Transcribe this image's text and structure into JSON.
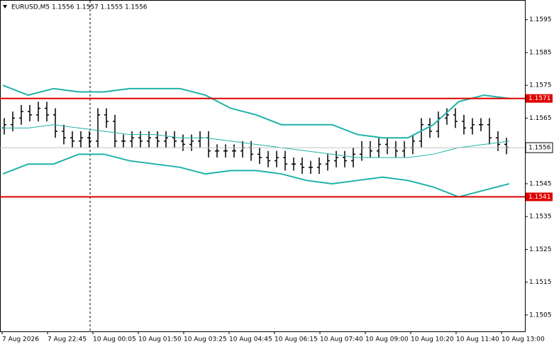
{
  "chart_data": {
    "type": "ohlc",
    "title": "EURUSD,M5  1.1556 1.1557 1.1555 1.1556",
    "color": "#000000",
    "open": [
      1.1562,
      1.1563,
      1.1565,
      1.1567,
      1.1566,
      1.1568,
      1.1566,
      1.1561,
      1.1559,
      1.1558,
      1.1559,
      1.1558,
      1.1566,
      1.1564,
      1.1558,
      1.1558,
      1.1559,
      1.1558,
      1.1559,
      1.1558,
      1.1559,
      1.1558,
      1.1557,
      1.1558,
      1.1559,
      1.1555,
      1.1555,
      1.1555,
      1.1555,
      1.1556,
      1.1554,
      1.1553,
      1.1552,
      1.1553,
      1.1551,
      1.1551,
      1.155,
      1.155,
      1.1551,
      1.1552,
      1.1553,
      1.1552,
      1.1554,
      1.1556,
      1.1555,
      1.1557,
      1.1556,
      1.1555,
      1.1556,
      1.1558,
      1.1563,
      1.1561,
      1.1565,
      1.1566,
      1.1564,
      1.1562,
      1.1563,
      1.1563,
      1.1559,
      1.1557
    ],
    "high": [
      1.1565,
      1.1567,
      1.1569,
      1.1569,
      1.157,
      1.157,
      1.1568,
      1.1563,
      1.1561,
      1.1561,
      1.1561,
      1.1568,
      1.1568,
      1.1566,
      1.156,
      1.1561,
      1.1561,
      1.1561,
      1.1561,
      1.1561,
      1.1561,
      1.156,
      1.156,
      1.1561,
      1.1561,
      1.1557,
      1.1557,
      1.1557,
      1.1558,
      1.1558,
      1.1556,
      1.1555,
      1.1555,
      1.1555,
      1.1553,
      1.1553,
      1.1552,
      1.1553,
      1.1554,
      1.1555,
      1.1555,
      1.1556,
      1.1558,
      1.1558,
      1.1559,
      1.1559,
      1.1558,
      1.1558,
      1.156,
      1.1565,
      1.1565,
      1.1567,
      1.1568,
      1.1568,
      1.1566,
      1.1565,
      1.1565,
      1.1565,
      1.1561,
      1.1559
    ],
    "low": [
      1.156,
      1.1561,
      1.1563,
      1.1564,
      1.1564,
      1.1564,
      1.1559,
      1.1557,
      1.1556,
      1.1556,
      1.1556,
      1.1556,
      1.1562,
      1.1556,
      1.1556,
      1.1556,
      1.1556,
      1.1556,
      1.1556,
      1.1556,
      1.1556,
      1.1555,
      1.1555,
      1.1556,
      1.1553,
      1.1553,
      1.1553,
      1.1553,
      1.1553,
      1.1552,
      1.1551,
      1.155,
      1.155,
      1.1549,
      1.1549,
      1.1548,
      1.1548,
      1.1548,
      1.1549,
      1.155,
      1.155,
      1.155,
      1.1552,
      1.1553,
      1.1553,
      1.1554,
      1.1553,
      1.1553,
      1.1554,
      1.1556,
      1.1559,
      1.1559,
      1.1563,
      1.1562,
      1.156,
      1.156,
      1.1561,
      1.1557,
      1.1555,
      1.1554
    ],
    "close": [
      1.1563,
      1.1565,
      1.1567,
      1.1566,
      1.1568,
      1.1566,
      1.1561,
      1.1559,
      1.1558,
      1.1559,
      1.1558,
      1.1566,
      1.1564,
      1.1558,
      1.1558,
      1.1559,
      1.1558,
      1.1559,
      1.1558,
      1.1559,
      1.1558,
      1.1557,
      1.1558,
      1.1559,
      1.1555,
      1.1555,
      1.1555,
      1.1555,
      1.1556,
      1.1554,
      1.1553,
      1.1552,
      1.1553,
      1.1551,
      1.1551,
      1.155,
      1.155,
      1.1551,
      1.1552,
      1.1553,
      1.1552,
      1.1554,
      1.1556,
      1.1555,
      1.1557,
      1.1556,
      1.1555,
      1.1556,
      1.1558,
      1.1563,
      1.1561,
      1.1565,
      1.1566,
      1.1564,
      1.1562,
      1.1563,
      1.1563,
      1.1559,
      1.1557,
      1.1556
    ],
    "series": [
      {
        "color": "#20b2aa",
        "values": [
          1.1575,
          1.1572,
          1.1574,
          1.1573,
          1.1573,
          1.1574,
          1.1574,
          1.1574,
          1.1572,
          1.1568,
          1.1566,
          1.1563,
          1.1563,
          1.1563,
          1.156,
          1.1559,
          1.1559,
          1.1563,
          1.157,
          1.1572,
          1.1571
        ]
      },
      {
        "color": "#20b2aa",
        "values": [
          1.1562,
          1.1562,
          1.1563,
          1.1562,
          1.1561,
          1.156,
          1.156,
          1.1559,
          1.1559,
          1.1558,
          1.1557,
          1.1556,
          1.1555,
          1.1554,
          1.1553,
          1.1553,
          1.1553,
          1.1554,
          1.1556,
          1.1557,
          1.1558
        ]
      },
      {
        "color": "#20b2aa",
        "values": [
          1.1548,
          1.1551,
          1.1551,
          1.1554,
          1.1554,
          1.1552,
          1.1551,
          1.155,
          1.1548,
          1.1549,
          1.1549,
          1.1548,
          1.1546,
          1.1545,
          1.1546,
          1.1547,
          1.1546,
          1.1544,
          1.1541,
          1.1543,
          1.1545
        ]
      }
    ],
    "levels": [
      {
        "value": 1.1571,
        "color": "#e00000"
      },
      {
        "value": 1.1541,
        "color": "#e00000"
      }
    ],
    "current_price": 1.1556,
    "ylim": [
      1.15,
      1.1601
    ],
    "yticks": [
      1.1595,
      1.1585,
      1.1575,
      1.1565,
      1.1545,
      1.1535,
      1.1525,
      1.1515,
      1.1505
    ],
    "xtick_labels": [
      "7 Aug 2026",
      "7 Aug 22:45",
      "10 Aug 00:05",
      "10 Aug 01:50",
      "10 Aug 03:25",
      "10 Aug 04:45",
      "10 Aug 06:15",
      "10 Aug 07:40",
      "10 Aug 09:00",
      "10 Aug 10:20",
      "10 Aug 11:40",
      "10 Aug 13:00"
    ]
  }
}
